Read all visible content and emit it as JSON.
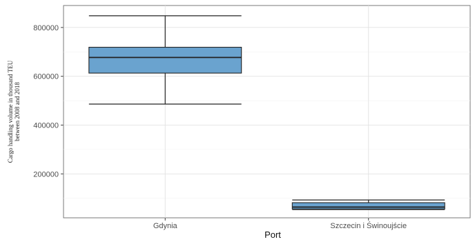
{
  "chart_data": {
    "type": "box",
    "xlabel": "Port",
    "ylabel_lines": [
      "Cargo handling volume in thousand TEU",
      "between 2008 and 2018"
    ],
    "categories": [
      "Gdynia",
      "Szczecin  i  Świnoujście"
    ],
    "boxes": [
      {
        "category": "Gdynia",
        "whisker_low": 486000,
        "q1": 613000,
        "median": 677000,
        "q3": 719000,
        "whisker_high": 848000
      },
      {
        "category": "Szczecin  i  Świnoujście",
        "whisker_low": 54000,
        "q1": 56000,
        "median": 64000,
        "q3": 82000,
        "whisker_high": 93000
      }
    ],
    "ylim": [
      20000,
      890000
    ],
    "y_ticks": [
      200000,
      400000,
      600000,
      800000
    ],
    "y_tick_labels": [
      "200000",
      "400000",
      "600000",
      "800000"
    ],
    "box_color": "#6aa3cf",
    "grid": true
  }
}
